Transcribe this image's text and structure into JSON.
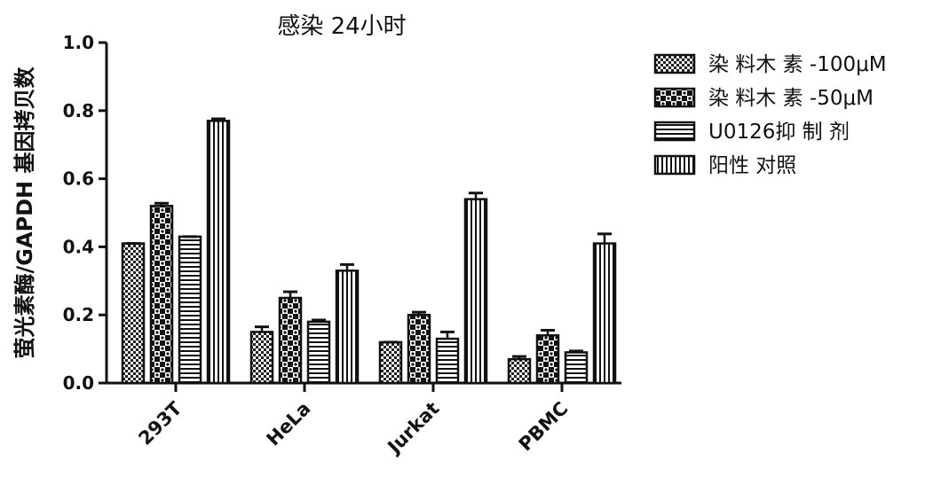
{
  "chart_data": {
    "type": "bar",
    "title": "感染 24小时",
    "xlabel": "",
    "ylabel": "萤光素酶/GAPDH 基因拷贝数",
    "ylim": [
      0,
      1.0
    ],
    "yticks": [
      "0.0",
      "0.2",
      "0.4",
      "0.6",
      "0.8",
      "1.0"
    ],
    "categories": [
      "293T",
      "HeLa",
      "Jurkat",
      "PBMC"
    ],
    "series": [
      {
        "name": "染 料木 素 -100μM",
        "pattern": "checker-fine",
        "values": [
          0.41,
          0.15,
          0.12,
          0.07
        ],
        "errors": [
          0.0,
          0.015,
          0.0,
          0.008
        ]
      },
      {
        "name": "染 料木 素 -50μM",
        "pattern": "checker-coarse",
        "values": [
          0.52,
          0.25,
          0.2,
          0.14
        ],
        "errors": [
          0.008,
          0.018,
          0.008,
          0.015
        ]
      },
      {
        "name": "U0126抑 制 剂",
        "pattern": "horizontal-stripes",
        "values": [
          0.43,
          0.18,
          0.13,
          0.09
        ],
        "errors": [
          0.0,
          0.005,
          0.02,
          0.004
        ]
      },
      {
        "name": "阳性 对照",
        "pattern": "vertical-stripes",
        "values": [
          0.77,
          0.33,
          0.54,
          0.41
        ],
        "errors": [
          0.006,
          0.018,
          0.018,
          0.028
        ]
      }
    ],
    "legend_position": "right",
    "grid": false
  }
}
